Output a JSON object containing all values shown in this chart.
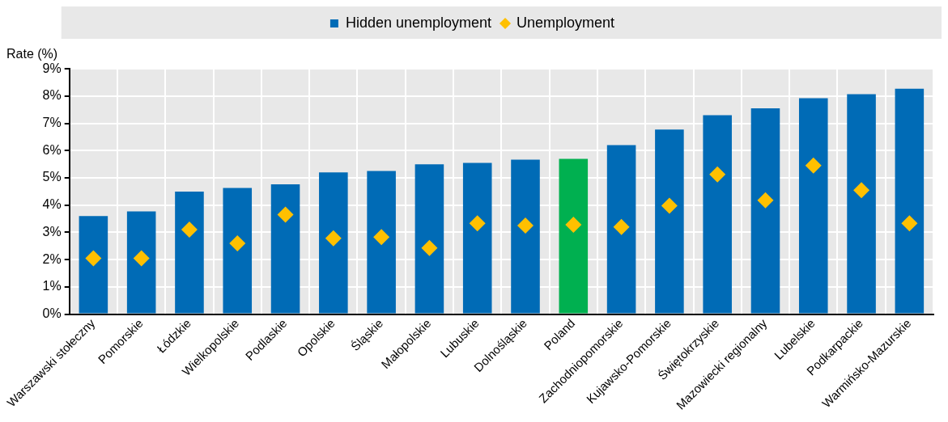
{
  "chart_data": {
    "type": "bar",
    "ylabel": "Rate (%)",
    "categories": [
      "Warszawski stołeczny",
      "Pomorskie",
      "Łódzkie",
      "Wielkopolskie",
      "Podlaskie",
      "Opolskie",
      "Śląskie",
      "Małopolskie",
      "Lubuskie",
      "Dolnośląskie",
      "Poland",
      "Zachodniopomorskie",
      "Kujawsko-Pomorskie",
      "Świętokrzyskie",
      "Mazowiecki regionalny",
      "Lubelskie",
      "Podkarpackie",
      "Warmińsko-Mazurskie"
    ],
    "series": [
      {
        "name": "Hidden unemployment",
        "color": "#006bb6",
        "colors": [
          "#006bb6",
          "#006bb6",
          "#006bb6",
          "#006bb6",
          "#006bb6",
          "#006bb6",
          "#006bb6",
          "#006bb6",
          "#006bb6",
          "#006bb6",
          "#00b050",
          "#006bb6",
          "#006bb6",
          "#006bb6",
          "#006bb6",
          "#006bb6",
          "#006bb6",
          "#006bb6"
        ],
        "values": [
          3.6,
          3.77,
          4.5,
          4.63,
          4.76,
          5.2,
          5.25,
          5.5,
          5.55,
          5.67,
          5.7,
          6.2,
          6.77,
          7.3,
          7.55,
          7.92,
          8.07,
          8.27
        ]
      },
      {
        "name": "Unemployment",
        "type": "scatter",
        "color": "#ffc000",
        "marker": "diamond",
        "values": [
          2.05,
          2.05,
          3.1,
          2.6,
          3.65,
          2.78,
          2.83,
          2.43,
          3.33,
          3.25,
          3.28,
          3.2,
          3.98,
          5.13,
          4.18,
          5.45,
          4.55,
          3.33
        ]
      }
    ],
    "ylim": [
      0,
      9
    ],
    "yticks": [
      {
        "value": 0,
        "label": "0%"
      },
      {
        "value": 1,
        "label": "1%"
      },
      {
        "value": 2,
        "label": "2%"
      },
      {
        "value": 3,
        "label": "3%"
      },
      {
        "value": 4,
        "label": "4%"
      },
      {
        "value": 5,
        "label": "5%"
      },
      {
        "value": 6,
        "label": "6%"
      },
      {
        "value": 7,
        "label": "7%"
      },
      {
        "value": 8,
        "label": "8%"
      },
      {
        "value": 9,
        "label": "9%"
      }
    ],
    "grid": true,
    "legend": "top"
  }
}
